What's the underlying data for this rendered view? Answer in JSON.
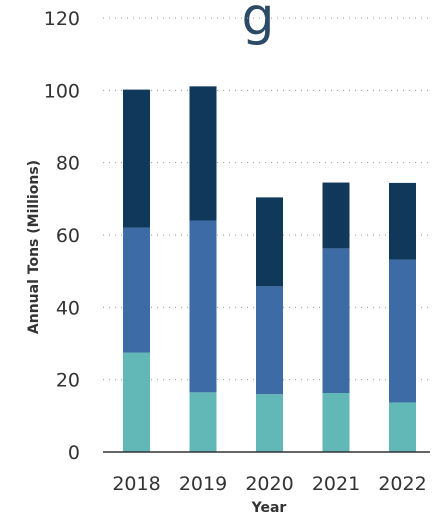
{
  "chart_data": {
    "type": "bar",
    "stacked": true,
    "title": "",
    "xlabel": "Year",
    "ylabel": "Annual Tons (Millions)",
    "ylim": [
      0,
      120
    ],
    "yticks": [
      0,
      20,
      40,
      60,
      80,
      100,
      120
    ],
    "grid": true,
    "categories": [
      "2018",
      "2019",
      "2020",
      "2021",
      "2022"
    ],
    "series": [
      {
        "color": "#62b8b6",
        "values": [
          27.5,
          16.5,
          16,
          16.3,
          13.7
        ]
      },
      {
        "color": "#3d6ba6",
        "values": [
          34.5,
          47.5,
          29.8,
          40,
          39.5
        ]
      },
      {
        "color": "#10385a",
        "values": [
          38.2,
          37.1,
          24.6,
          18.2,
          21.2
        ]
      }
    ],
    "colors": {
      "axis": "#333333",
      "grid": "#999999",
      "text": "#333333"
    }
  }
}
